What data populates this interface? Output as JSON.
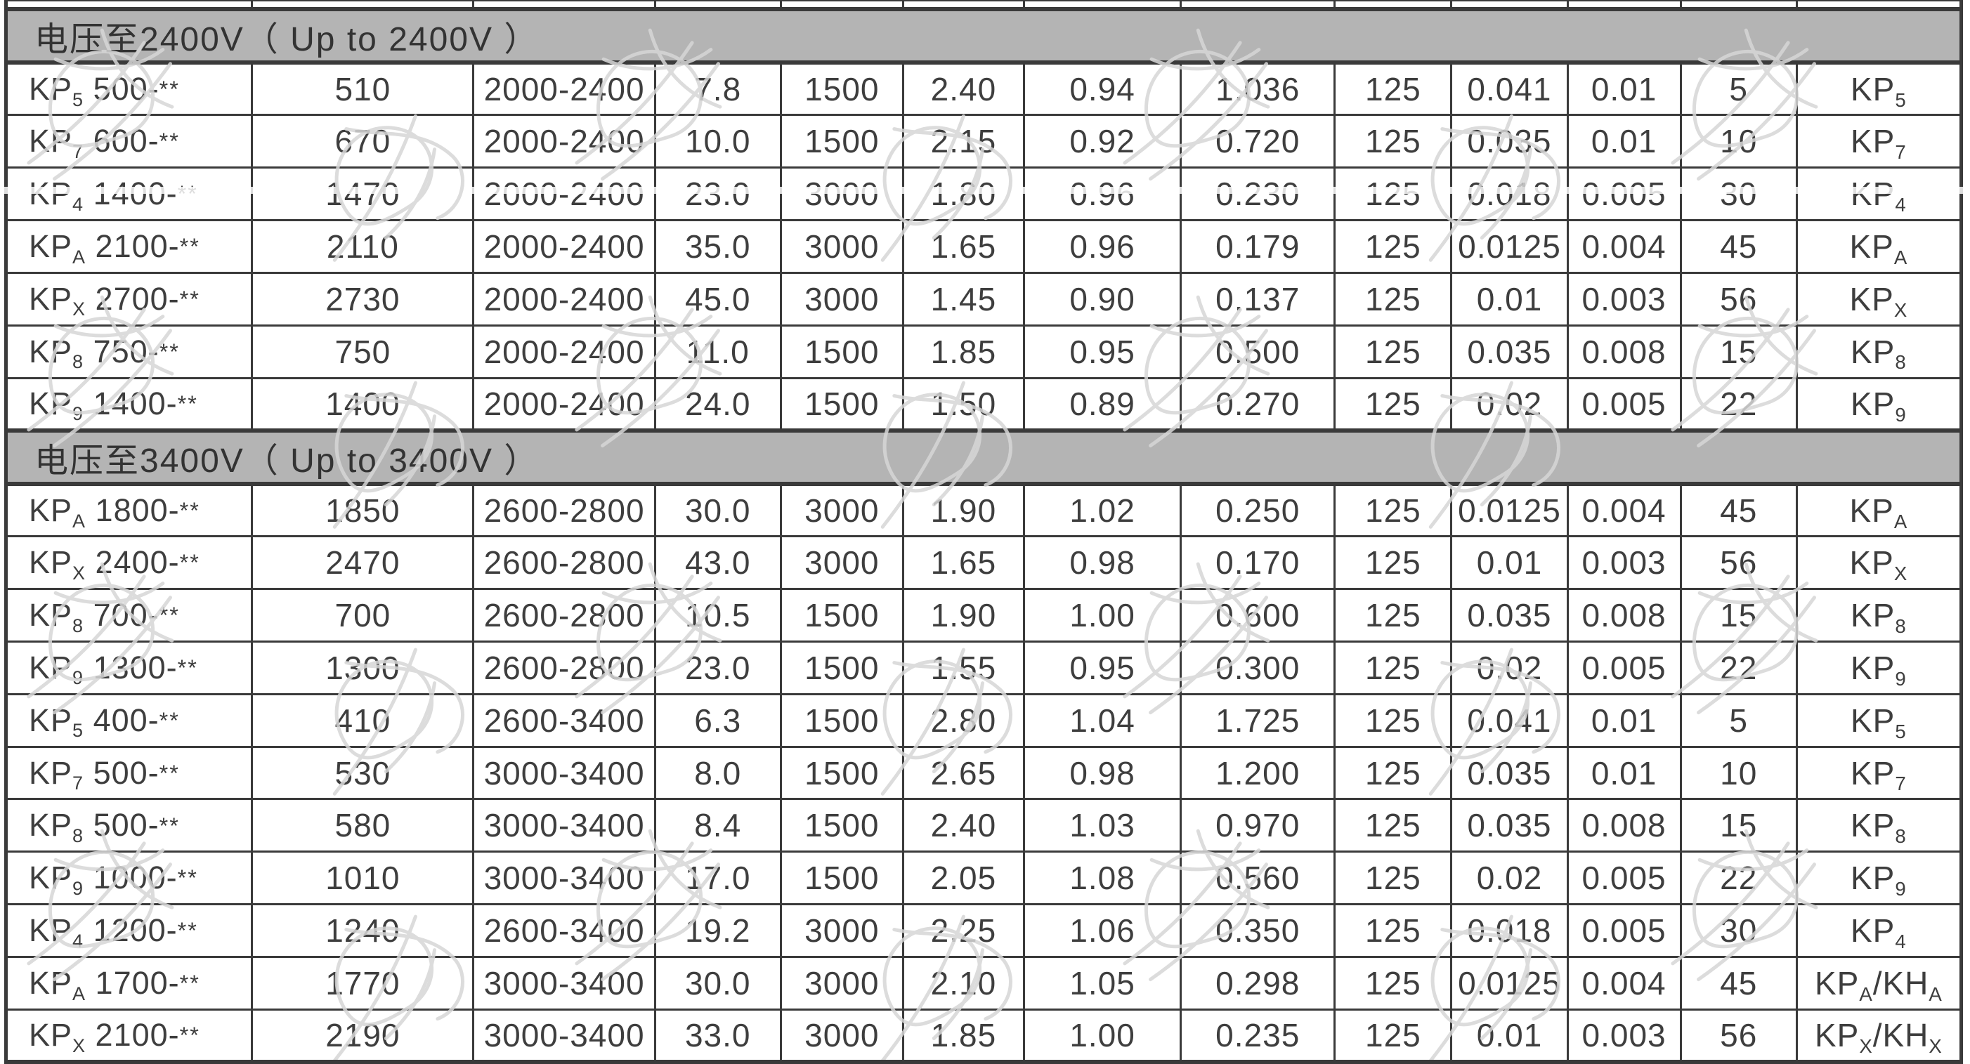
{
  "table": {
    "model_dash": "-",
    "model_stars": "**",
    "type_separator": "/",
    "sections": [
      {
        "title": "电压至2400V（ Up to 2400V ）",
        "rows": [
          {
            "model": {
              "series": "KP",
              "sub": "5",
              "rating": "500"
            },
            "values": [
              "510",
              "2000-2400",
              "7.8",
              "1500",
              "2.40",
              "0.94",
              "1.036",
              "125",
              "0.041",
              "0.01",
              "5"
            ],
            "types": [
              {
                "series": "KP",
                "sub": "5"
              }
            ]
          },
          {
            "model": {
              "series": "KP",
              "sub": "7",
              "rating": "600"
            },
            "values": [
              "670",
              "2000-2400",
              "10.0",
              "1500",
              "2.15",
              "0.92",
              "0.720",
              "125",
              "0.035",
              "0.01",
              "10"
            ],
            "types": [
              {
                "series": "KP",
                "sub": "7"
              }
            ]
          },
          {
            "model": {
              "series": "KP",
              "sub": "4",
              "rating": "1400"
            },
            "values": [
              "1470",
              "2000-2400",
              "23.0",
              "3000",
              "1.80",
              "0.96",
              "0.230",
              "125",
              "0.018",
              "0.005",
              "30"
            ],
            "types": [
              {
                "series": "KP",
                "sub": "4"
              }
            ]
          },
          {
            "model": {
              "series": "KP",
              "sub": "A",
              "rating": "2100"
            },
            "values": [
              "2110",
              "2000-2400",
              "35.0",
              "3000",
              "1.65",
              "0.96",
              "0.179",
              "125",
              "0.0125",
              "0.004",
              "45"
            ],
            "types": [
              {
                "series": "KP",
                "sub": "A"
              }
            ]
          },
          {
            "model": {
              "series": "KP",
              "sub": "X",
              "rating": "2700"
            },
            "values": [
              "2730",
              "2000-2400",
              "45.0",
              "3000",
              "1.45",
              "0.90",
              "0.137",
              "125",
              "0.01",
              "0.003",
              "56"
            ],
            "types": [
              {
                "series": "KP",
                "sub": "X"
              }
            ]
          },
          {
            "model": {
              "series": "KP",
              "sub": "8",
              "rating": "750"
            },
            "values": [
              "750",
              "2000-2400",
              "11.0",
              "1500",
              "1.85",
              "0.95",
              "0.500",
              "125",
              "0.035",
              "0.008",
              "15"
            ],
            "types": [
              {
                "series": "KP",
                "sub": "8"
              }
            ]
          },
          {
            "model": {
              "series": "KP",
              "sub": "9",
              "rating": "1400"
            },
            "values": [
              "1400",
              "2000-2400",
              "24.0",
              "1500",
              "1.50",
              "0.89",
              "0.270",
              "125",
              "0.02",
              "0.005",
              "22"
            ],
            "types": [
              {
                "series": "KP",
                "sub": "9"
              }
            ]
          }
        ]
      },
      {
        "title": "电压至3400V（ Up to 3400V ）",
        "rows": [
          {
            "model": {
              "series": "KP",
              "sub": "A",
              "rating": "1800"
            },
            "values": [
              "1850",
              "2600-2800",
              "30.0",
              "3000",
              "1.90",
              "1.02",
              "0.250",
              "125",
              "0.0125",
              "0.004",
              "45"
            ],
            "types": [
              {
                "series": "KP",
                "sub": "A"
              }
            ]
          },
          {
            "model": {
              "series": "KP",
              "sub": "X",
              "rating": "2400"
            },
            "values": [
              "2470",
              "2600-2800",
              "43.0",
              "3000",
              "1.65",
              "0.98",
              "0.170",
              "125",
              "0.01",
              "0.003",
              "56"
            ],
            "types": [
              {
                "series": "KP",
                "sub": "X"
              }
            ]
          },
          {
            "model": {
              "series": "KP",
              "sub": "8",
              "rating": "700"
            },
            "values": [
              "700",
              "2600-2800",
              "10.5",
              "1500",
              "1.90",
              "1.00",
              "0.600",
              "125",
              "0.035",
              "0.008",
              "15"
            ],
            "types": [
              {
                "series": "KP",
                "sub": "8"
              }
            ]
          },
          {
            "model": {
              "series": "KP",
              "sub": "9",
              "rating": "1300"
            },
            "values": [
              "1300",
              "2600-2800",
              "23.0",
              "1500",
              "1.55",
              "0.95",
              "0.300",
              "125",
              "0.02",
              "0.005",
              "22"
            ],
            "types": [
              {
                "series": "KP",
                "sub": "9"
              }
            ]
          },
          {
            "model": {
              "series": "KP",
              "sub": "5",
              "rating": "400"
            },
            "values": [
              "410",
              "2600-3400",
              "6.3",
              "1500",
              "2.80",
              "1.04",
              "1.725",
              "125",
              "0.041",
              "0.01",
              "5"
            ],
            "types": [
              {
                "series": "KP",
                "sub": "5"
              }
            ]
          },
          {
            "model": {
              "series": "KP",
              "sub": "7",
              "rating": "500"
            },
            "values": [
              "530",
              "3000-3400",
              "8.0",
              "1500",
              "2.65",
              "0.98",
              "1.200",
              "125",
              "0.035",
              "0.01",
              "10"
            ],
            "types": [
              {
                "series": "KP",
                "sub": "7"
              }
            ]
          },
          {
            "model": {
              "series": "KP",
              "sub": "8",
              "rating": "500"
            },
            "values": [
              "580",
              "3000-3400",
              "8.4",
              "1500",
              "2.40",
              "1.03",
              "0.970",
              "125",
              "0.035",
              "0.008",
              "15"
            ],
            "types": [
              {
                "series": "KP",
                "sub": "8"
              }
            ]
          },
          {
            "model": {
              "series": "KP",
              "sub": "9",
              "rating": "1000"
            },
            "values": [
              "1010",
              "3000-3400",
              "17.0",
              "1500",
              "2.05",
              "1.08",
              "0.560",
              "125",
              "0.02",
              "0.005",
              "22"
            ],
            "types": [
              {
                "series": "KP",
                "sub": "9"
              }
            ]
          },
          {
            "model": {
              "series": "KP",
              "sub": "4",
              "rating": "1200"
            },
            "values": [
              "1240",
              "2600-3400",
              "19.2",
              "3000",
              "2.25",
              "1.06",
              "0.350",
              "125",
              "0.018",
              "0.005",
              "30"
            ],
            "types": [
              {
                "series": "KP",
                "sub": "4"
              }
            ]
          },
          {
            "model": {
              "series": "KP",
              "sub": "A",
              "rating": "1700"
            },
            "values": [
              "1770",
              "3000-3400",
              "30.0",
              "3000",
              "2.10",
              "1.05",
              "0.298",
              "125",
              "0.0125",
              "0.004",
              "45"
            ],
            "types": [
              {
                "series": "KP",
                "sub": "A"
              },
              {
                "series": "KH",
                "sub": "A"
              }
            ]
          },
          {
            "model": {
              "series": "KP",
              "sub": "X",
              "rating": "2100"
            },
            "values": [
              "2190",
              "3000-3400",
              "33.0",
              "3000",
              "1.85",
              "1.00",
              "0.235",
              "125",
              "0.01",
              "0.003",
              "56"
            ],
            "types": [
              {
                "series": "KP",
                "sub": "X"
              },
              {
                "series": "KH",
                "sub": "X"
              }
            ]
          }
        ]
      }
    ]
  },
  "colors": {
    "header_bg": "#b4b4b4",
    "border": "#3a3a3a",
    "text": "#3e3e3e",
    "watermark": "#d6d6d6"
  }
}
